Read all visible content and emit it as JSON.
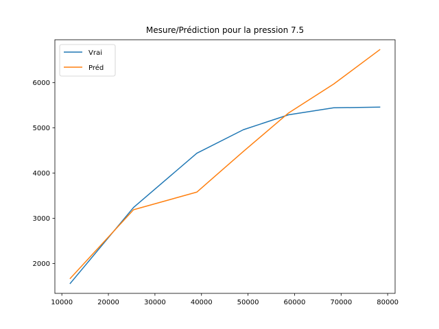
{
  "chart_data": {
    "type": "line",
    "title": "Mesure/Prédiction pour la pression 7.5",
    "xlabel": "",
    "ylabel": "",
    "xlim": [
      8500,
      81600
    ],
    "ylim": [
      1340,
      6950
    ],
    "xticks": [
      10000,
      20000,
      30000,
      40000,
      50000,
      60000,
      70000,
      80000
    ],
    "yticks": [
      2000,
      3000,
      4000,
      5000,
      6000
    ],
    "grid": false,
    "legend": "top-left",
    "series": [
      {
        "name": "Vrai",
        "color": "#1f77b4",
        "x": [
          11800,
          25400,
          39000,
          49000,
          58700,
          68400,
          78300
        ],
        "y": [
          1560,
          3240,
          4440,
          4960,
          5290,
          5445,
          5460
        ]
      },
      {
        "name": "Préd",
        "color": "#ff7f0e",
        "x": [
          11800,
          25400,
          39000,
          49000,
          58700,
          68400,
          78300
        ],
        "y": [
          1670,
          3190,
          3580,
          4480,
          5330,
          5970,
          6730
        ]
      }
    ]
  }
}
